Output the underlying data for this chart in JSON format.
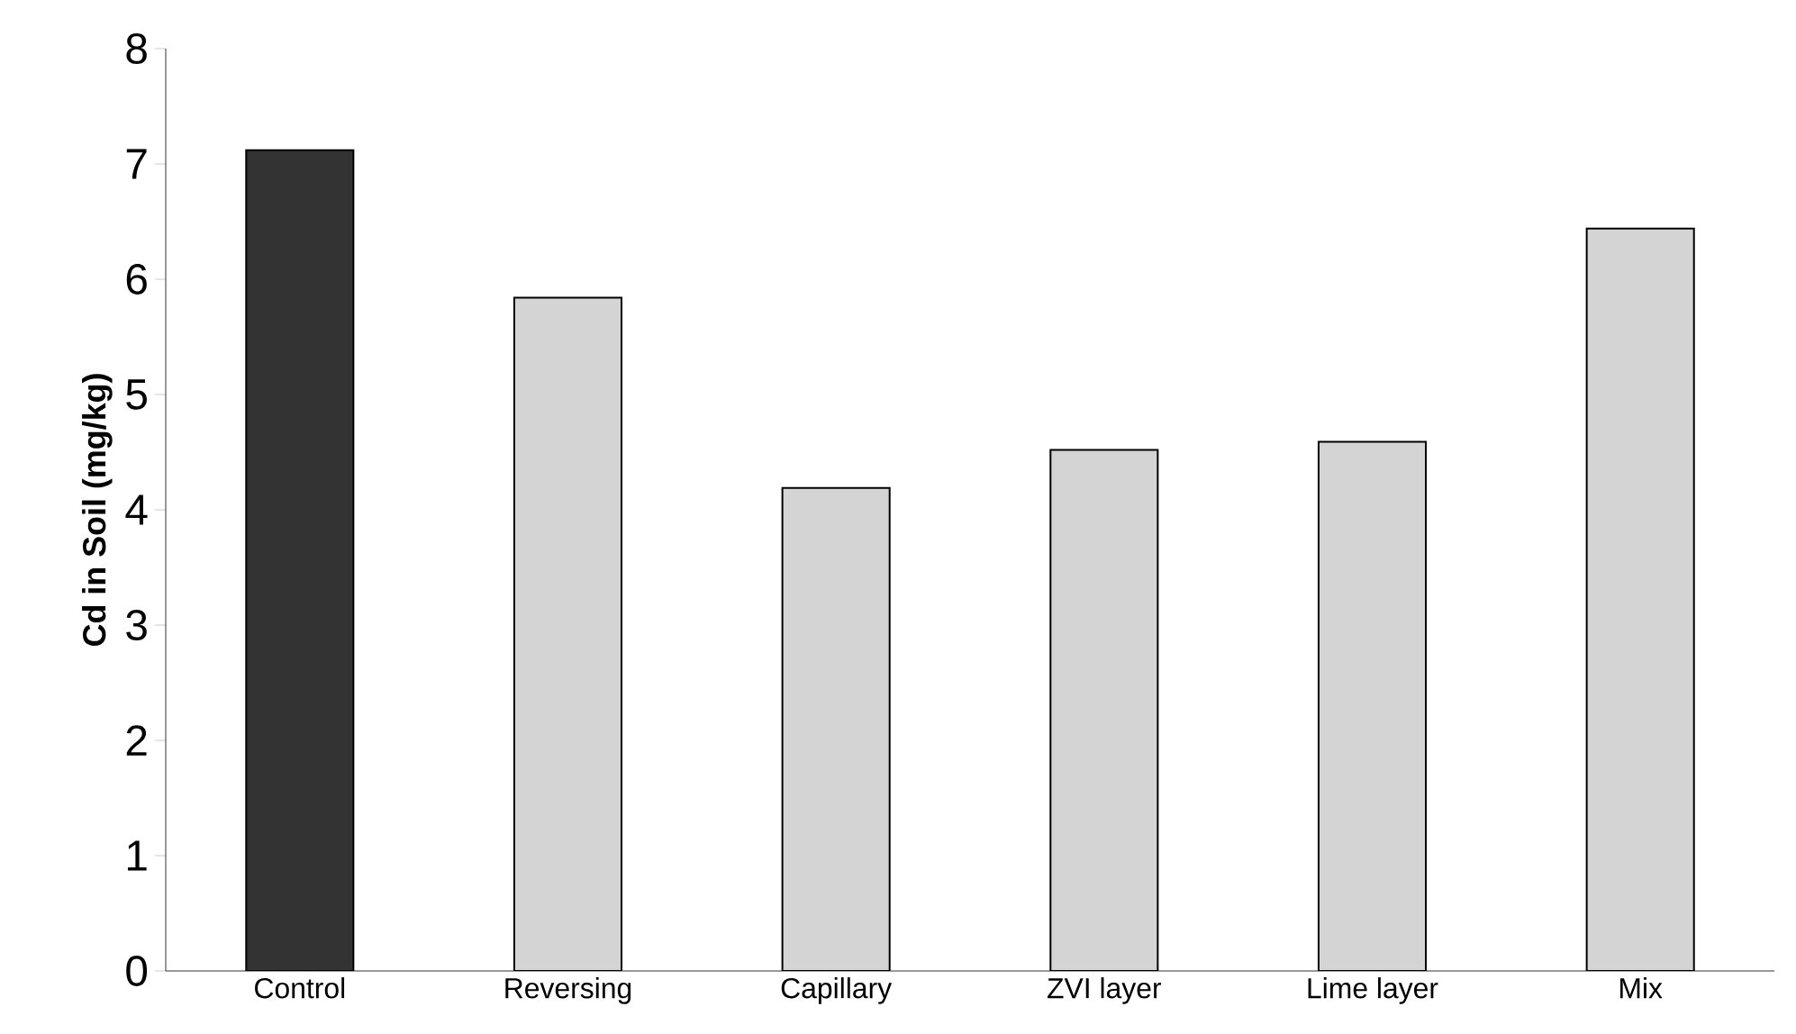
{
  "chart_data": {
    "type": "bar",
    "ylabel": "**Cd in Soil (mg/kg)**",
    "categories": [
      "Control",
      "Reversing",
      "Capillary",
      "ZVI layer",
      "Lime layer",
      "Mix"
    ],
    "values": [
      7.12,
      5.84,
      4.19,
      4.52,
      4.59,
      6.44
    ],
    "colors": [
      "#333333",
      "#d4d4d4",
      "#d4d4d4",
      "#d4d4d4",
      "#d4d4d4",
      "#d4d4d4"
    ],
    "ylim": [
      0,
      8
    ],
    "yticks": [
      0,
      1,
      2,
      3,
      4,
      5,
      6,
      7,
      8
    ]
  }
}
